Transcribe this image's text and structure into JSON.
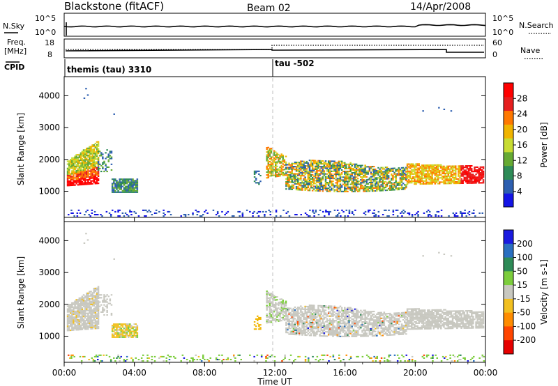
{
  "header": {
    "station": "Blackstone (fitACF)",
    "beam": "Beam 02",
    "date": "14/Apr/2008"
  },
  "noise_panel": {
    "left_label": "N.Sky",
    "right_label": "N.Search",
    "left_ticks": [
      "10^5",
      "10^0"
    ],
    "right_ticks": [
      "10^5",
      "10^0"
    ]
  },
  "freq_panel": {
    "left_label_1": "Freq.",
    "left_label_2": "[MHz]",
    "right_label": "Nave",
    "left_ticks": [
      "18",
      "8"
    ],
    "right_ticks": [
      "60",
      "0"
    ]
  },
  "cpid": {
    "label": "CPID",
    "segments": [
      {
        "start_hour": 0.0,
        "name": "themis (tau) 3310"
      },
      {
        "start_hour": 12.0,
        "name": "tau -502"
      }
    ]
  },
  "chart_data": [
    {
      "type": "heatmap",
      "name": "power",
      "ylabel": "Slant Range [km]",
      "ylim": [
        180,
        4600
      ],
      "yticks": [
        "1000",
        "2000",
        "3000",
        "4000"
      ],
      "xlim_hours": [
        0,
        24
      ],
      "colorbar": {
        "label": "Power [dB]",
        "ticks": [
          "4",
          "8",
          "12",
          "16",
          "20",
          "24",
          "28"
        ],
        "colors": [
          "#1414e6",
          "#2d5fb0",
          "#2e8b57",
          "#66aa33",
          "#c8dc32",
          "#f0b400",
          "#ff7800",
          "#e61e1e",
          "#ff0000"
        ]
      }
    },
    {
      "type": "heatmap",
      "name": "velocity",
      "ylabel": "Slant Range [km]",
      "ylim": [
        180,
        4600
      ],
      "yticks": [
        "1000",
        "2000",
        "3000",
        "4000"
      ],
      "xlim_hours": [
        0,
        24
      ],
      "colorbar": {
        "label": "Velocity [m s-1]",
        "ticks": [
          "200",
          "100",
          "50",
          "15",
          "-15",
          "-50",
          "-100",
          "-200"
        ],
        "colors": [
          "#1a1ae0",
          "#2a6fc0",
          "#2e8b57",
          "#7ccd3c",
          "#c8c8c0",
          "#f2c020",
          "#ff8c00",
          "#ff4500",
          "#e60000"
        ]
      }
    }
  ],
  "xaxis": {
    "label": "Time UT",
    "ticks": [
      "00:00",
      "04:00",
      "08:00",
      "12:00",
      "16:00",
      "20:00",
      "00:00"
    ]
  }
}
